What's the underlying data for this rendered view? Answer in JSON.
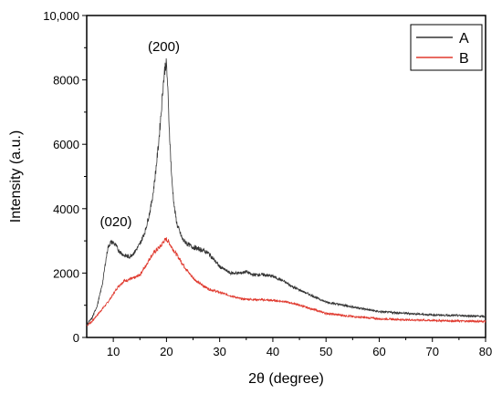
{
  "chart_data": {
    "type": "line",
    "xlabel": "2θ (degree)",
    "ylabel": "Intensity (a.u.)",
    "xlim": [
      5,
      80
    ],
    "ylim": [
      0,
      10000
    ],
    "x_ticks": [
      10,
      20,
      30,
      40,
      50,
      60,
      70,
      80
    ],
    "x_tick_labels": [
      "10",
      "20",
      "30",
      "40",
      "50",
      "60",
      "70",
      "80"
    ],
    "y_ticks": [
      0,
      2000,
      4000,
      6000,
      8000,
      10000
    ],
    "y_tick_labels": [
      "0",
      "2000",
      "4000",
      "6000",
      "8000",
      "10,000"
    ],
    "grid": false,
    "legend_position": "top-right",
    "annotations": [
      {
        "text": "(020)",
        "x": 10.5,
        "y": 3450
      },
      {
        "text": "(200)",
        "x": 19.5,
        "y": 8900
      }
    ],
    "series": [
      {
        "name": "A",
        "color": "#333333",
        "x": [
          5,
          6,
          7,
          8,
          8.5,
          9,
          9.5,
          10,
          10.5,
          11,
          12,
          13,
          14,
          15,
          16,
          17,
          17.5,
          18,
          18.5,
          19,
          19.3,
          19.6,
          19.8,
          20,
          20.2,
          20.4,
          20.7,
          21,
          21.5,
          22,
          23,
          24,
          25,
          26,
          27,
          28,
          29,
          30,
          32,
          34,
          35,
          36,
          38,
          40,
          42,
          44,
          46,
          48,
          50,
          55,
          60,
          65,
          70,
          75,
          80
        ],
        "y": [
          400,
          600,
          1000,
          1700,
          2300,
          2800,
          2950,
          2950,
          2850,
          2700,
          2550,
          2500,
          2650,
          2900,
          3300,
          4000,
          4500,
          5200,
          6000,
          7000,
          7700,
          8200,
          8500,
          8450,
          7900,
          7000,
          5900,
          4900,
          4000,
          3500,
          3050,
          2900,
          2800,
          2750,
          2700,
          2600,
          2400,
          2200,
          2000,
          2000,
          2050,
          1950,
          1950,
          1900,
          1750,
          1550,
          1400,
          1250,
          1100,
          950,
          800,
          750,
          700,
          680,
          650
        ]
      },
      {
        "name": "B",
        "color": "#e03a2f",
        "x": [
          5,
          6,
          7,
          8,
          9,
          10,
          11,
          12,
          13,
          14,
          15,
          16,
          17,
          18,
          19,
          19.5,
          20,
          20.5,
          21,
          22,
          23,
          24,
          25,
          26,
          28,
          30,
          32,
          33,
          34,
          36,
          38,
          40,
          42,
          44,
          46,
          48,
          50,
          55,
          60,
          65,
          70,
          75,
          80
        ],
        "y": [
          380,
          500,
          700,
          900,
          1100,
          1350,
          1600,
          1750,
          1800,
          1850,
          1950,
          2200,
          2500,
          2700,
          2850,
          3000,
          3050,
          2950,
          2800,
          2550,
          2300,
          2050,
          1850,
          1700,
          1500,
          1400,
          1300,
          1250,
          1200,
          1180,
          1170,
          1150,
          1120,
          1050,
          950,
          850,
          750,
          650,
          580,
          550,
          530,
          510,
          500
        ]
      }
    ]
  }
}
